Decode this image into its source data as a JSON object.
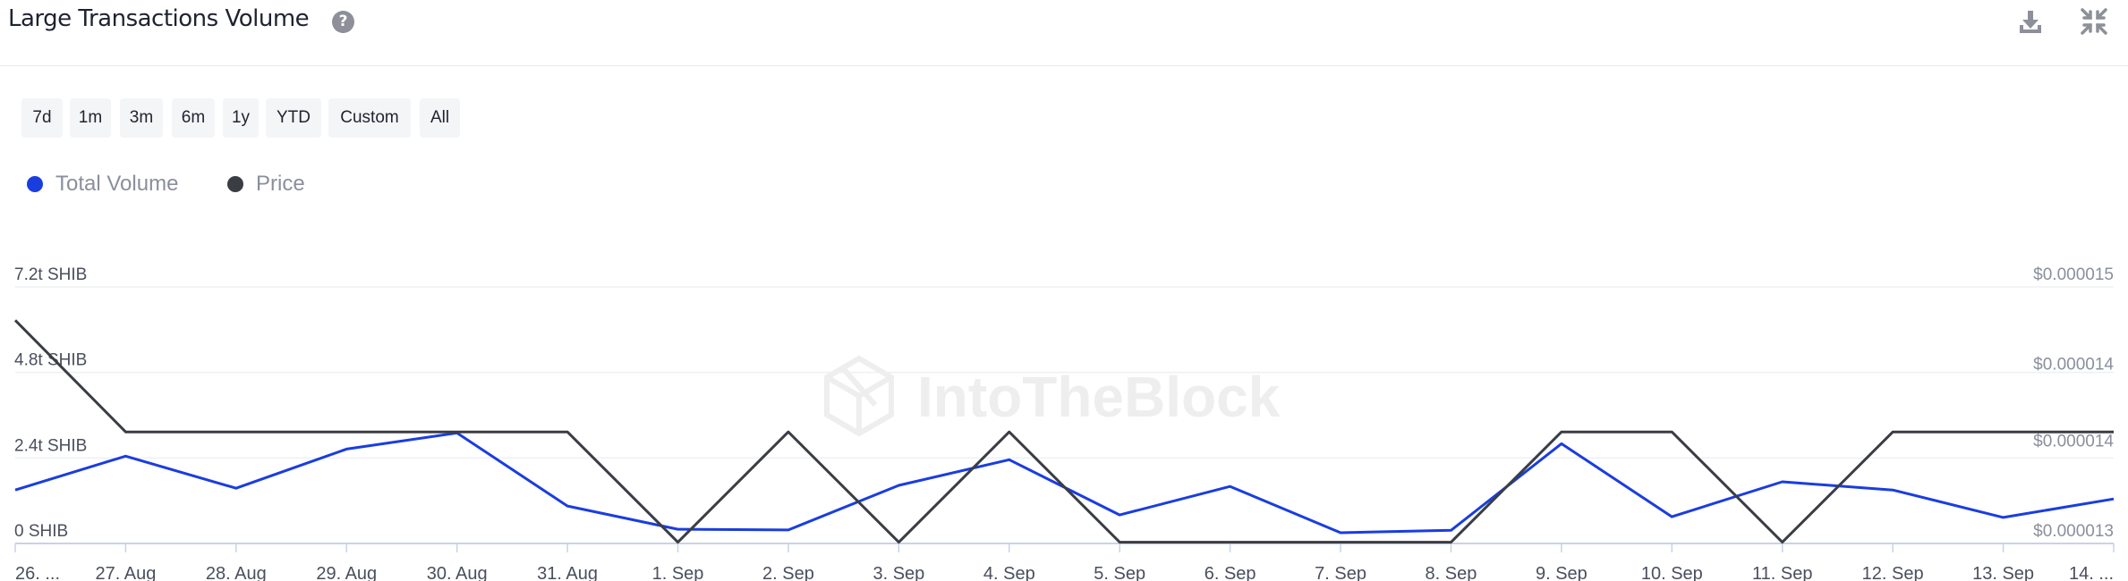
{
  "header": {
    "title": "Large Transactions Volume",
    "help_glyph": "?",
    "icons": [
      "help-icon",
      "download-icon",
      "collapse-icon"
    ]
  },
  "ranges": [
    "7d",
    "1m",
    "3m",
    "6m",
    "1y",
    "YTD",
    "Custom",
    "All"
  ],
  "legend": [
    {
      "name": "Total Volume",
      "color": "#1a3de0"
    },
    {
      "name": "Price",
      "color": "#3b3d44"
    }
  ],
  "watermark": "IntoTheBlock",
  "chart_data": {
    "type": "line",
    "categories": [
      "26. ...",
      "27. Aug",
      "28. Aug",
      "29. Aug",
      "30. Aug",
      "31. Aug",
      "1. Sep",
      "2. Sep",
      "3. Sep",
      "4. Sep",
      "5. Sep",
      "6. Sep",
      "7. Sep",
      "8. Sep",
      "9. Sep",
      "10. Sep",
      "11. Sep",
      "12. Sep",
      "13. Sep",
      "14. ..."
    ],
    "left_axis": {
      "ticks": [
        "0 SHIB",
        "2.4t SHIB",
        "4.8t SHIB",
        "7.2t SHIB"
      ],
      "values": [
        0,
        2.4,
        4.8,
        7.2
      ],
      "unit": "t SHIB",
      "range": [
        0,
        7.2
      ]
    },
    "right_axis": {
      "ticks": [
        "$0.000013",
        "$0.000014",
        "$0.000014",
        "$0.000015"
      ],
      "values": [
        1.3e-05,
        1.37e-05,
        1.43e-05,
        1.5e-05
      ],
      "range": [
        1.3e-05,
        1.5e-05
      ]
    },
    "series": [
      {
        "name": "Total Volume",
        "axis": "left",
        "color": "#1a3de0",
        "values": [
          1.5,
          2.45,
          1.55,
          2.65,
          3.1,
          1.05,
          0.4,
          0.38,
          1.63,
          2.35,
          0.8,
          1.6,
          0.3,
          0.37,
          2.8,
          0.75,
          1.73,
          1.5,
          0.73,
          1.25
        ]
      },
      {
        "name": "Price",
        "axis": "right",
        "color": "#3b3d44",
        "values": [
          1.474e-05,
          1.387e-05,
          1.387e-05,
          1.387e-05,
          1.387e-05,
          1.387e-05,
          1.301e-05,
          1.387e-05,
          1.301e-05,
          1.387e-05,
          1.301e-05,
          1.301e-05,
          1.301e-05,
          1.301e-05,
          1.387e-05,
          1.387e-05,
          1.301e-05,
          1.387e-05,
          1.387e-05,
          1.387e-05
        ]
      }
    ],
    "grid": true,
    "legend_position": "top-left"
  }
}
